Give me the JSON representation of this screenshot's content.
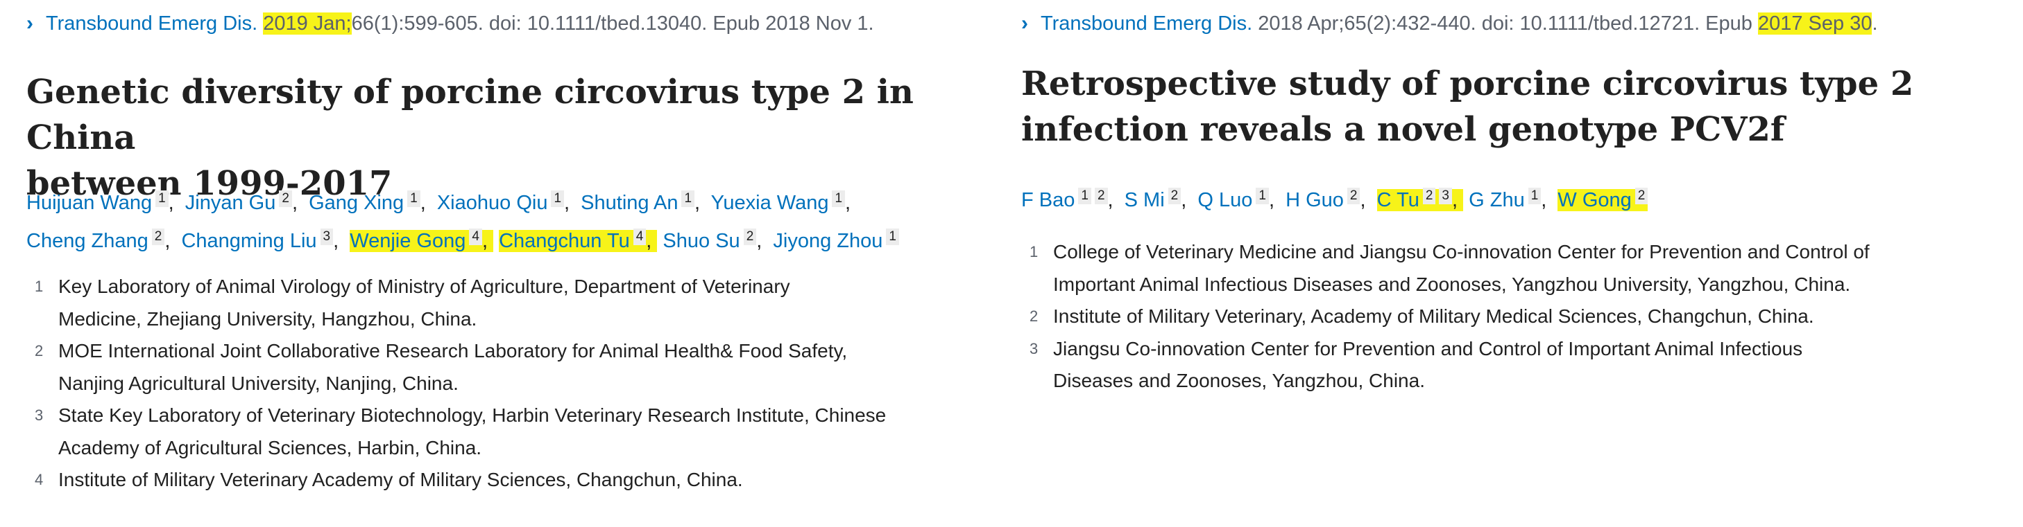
{
  "left_article": {
    "citation": {
      "journal": "Transbound Emerg Dis.",
      "date": "2019 Jan;",
      "rest": "66(1):599-605. doi: 10.1111/tbed.13040. Epub 2018 Nov 1."
    },
    "title_line1": "Genetic diversity of porcine circovirus type 2 in China",
    "title_line2": "between 1999-2017",
    "authors": [
      {
        "name": "Huijuan Wang",
        "aff": [
          "1"
        ],
        "highlight": false
      },
      {
        "name": "Jinyan Gu",
        "aff": [
          "2"
        ],
        "highlight": false
      },
      {
        "name": "Gang Xing",
        "aff": [
          "1"
        ],
        "highlight": false
      },
      {
        "name": "Xiaohuo Qiu",
        "aff": [
          "1"
        ],
        "highlight": false
      },
      {
        "name": "Shuting An",
        "aff": [
          "1"
        ],
        "highlight": false
      },
      {
        "name": "Yuexia Wang",
        "aff": [
          "1"
        ],
        "highlight": false
      },
      {
        "name": "Cheng Zhang",
        "aff": [
          "2"
        ],
        "highlight": false
      },
      {
        "name": "Changming Liu",
        "aff": [
          "3"
        ],
        "highlight": false
      },
      {
        "name": "Wenjie Gong",
        "aff": [
          "4"
        ],
        "highlight": true
      },
      {
        "name": "Changchun Tu",
        "aff": [
          "4"
        ],
        "highlight": true
      },
      {
        "name": "Shuo Su",
        "aff": [
          "2"
        ],
        "highlight": false
      },
      {
        "name": "Jiyong Zhou",
        "aff": [
          "1"
        ],
        "highlight": false
      }
    ],
    "affiliations": [
      {
        "num": "1",
        "line1": "Key Laboratory of Animal Virology of Ministry of Agriculture, Department of Veterinary",
        "line2": "Medicine, Zhejiang University, Hangzhou, China."
      },
      {
        "num": "2",
        "line1": "MOE International Joint Collaborative Research Laboratory for Animal Health& Food Safety,",
        "line2": "Nanjing Agricultural University, Nanjing, China."
      },
      {
        "num": "3",
        "line1": "State Key Laboratory of Veterinary Biotechnology, Harbin Veterinary Research Institute, Chinese",
        "line2": "Academy of Agricultural Sciences, Harbin, China."
      },
      {
        "num": "4",
        "line1": "Institute of Military Veterinary Academy of Military Sciences, Changchun, China.",
        "line2": ""
      }
    ]
  },
  "right_article": {
    "citation": {
      "journal": "Transbound Emerg Dis.",
      "rest": "2018 Apr;65(2):432-440. doi: 10.1111/tbed.12721. Epub",
      "epub_date": "2017 Sep 30",
      "end": "."
    },
    "title_line1": "Retrospective study of porcine circovirus type 2",
    "title_line2": "infection reveals a novel genotype PCV2f",
    "authors": [
      {
        "name": "F Bao",
        "aff": [
          "1",
          "2"
        ],
        "highlight": false
      },
      {
        "name": "S Mi",
        "aff": [
          "2"
        ],
        "highlight": false
      },
      {
        "name": "Q Luo",
        "aff": [
          "1"
        ],
        "highlight": false
      },
      {
        "name": "H Guo",
        "aff": [
          "2"
        ],
        "highlight": false
      },
      {
        "name": "C Tu",
        "aff": [
          "2",
          "3"
        ],
        "highlight": true
      },
      {
        "name": "G Zhu",
        "aff": [
          "1"
        ],
        "highlight": false
      },
      {
        "name": "W Gong",
        "aff": [
          "2"
        ],
        "highlight": true
      }
    ],
    "affiliations": [
      {
        "num": "1",
        "line1": "College of Veterinary Medicine and Jiangsu Co-innovation Center for Prevention and Control of",
        "line2": "Important Animal Infectious Diseases and Zoonoses, Yangzhou University, Yangzhou, China."
      },
      {
        "num": "2",
        "line1": "Institute of Military Veterinary, Academy of Military Medical Sciences, Changchun, China.",
        "line2": ""
      },
      {
        "num": "3",
        "line1": "Jiangsu Co-innovation Center for Prevention and Control of Important Animal Infectious",
        "line2": "Diseases and Zoonoses, Yangzhou, China."
      }
    ]
  },
  "colors": {
    "link": "#0071bc",
    "highlight": "#f7f319",
    "text": "#212121",
    "muted": "#5b616b"
  }
}
